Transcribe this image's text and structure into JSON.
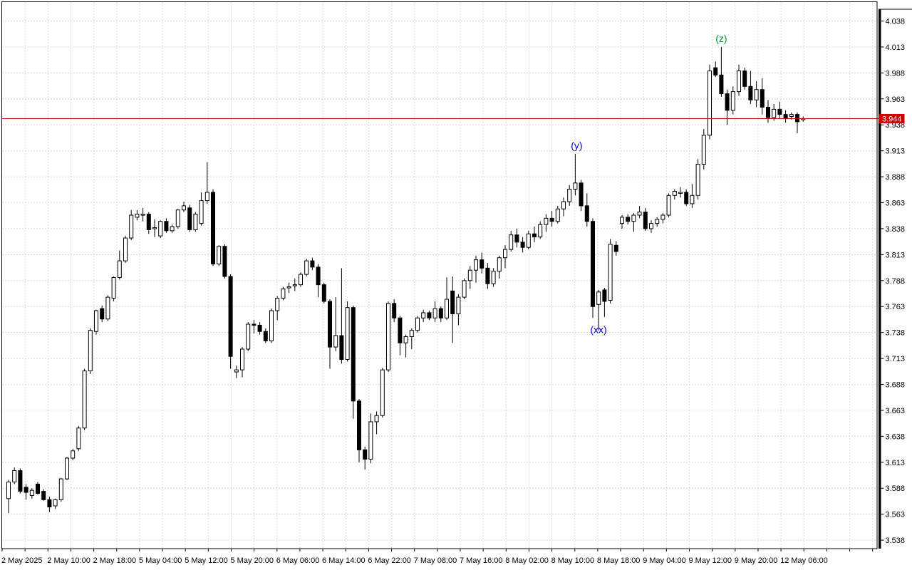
{
  "window": {
    "background": "#ffffff"
  },
  "colors": {
    "candle_up_fill": "#ffffff",
    "candle_down_fill": "#000000",
    "candle_stroke": "#000000",
    "grid": "#dcdcdc",
    "axis": "#000000",
    "price_line": "#cc0000",
    "price_tag_bg": "#cc0000",
    "price_tag_text": "#ffffff",
    "label_blue": "#0000dd",
    "label_green": "#009933",
    "scale_text": "#000000"
  },
  "price_scale": {
    "tick_labels": [
      "4.038",
      "4.013",
      "3.988",
      "3.963",
      "3.938",
      "3.913",
      "3.888",
      "3.863",
      "3.838",
      "3.813",
      "3.788",
      "3.763",
      "3.738",
      "3.713",
      "3.688",
      "3.663",
      "3.638",
      "3.613",
      "3.588",
      "3.563",
      "3.538"
    ]
  },
  "time_scale": {
    "tick_labels": [
      "2 May 2025",
      "2 May 10:00",
      "2 May 18:00",
      "5 May 04:00",
      "5 May 12:00",
      "5 May 20:00",
      "6 May 06:00",
      "6 May 14:00",
      "6 May 22:00",
      "7 May 08:00",
      "7 May 16:00",
      "8 May 02:00",
      "8 May 10:00",
      "8 May 18:00",
      "9 May 04:00",
      "9 May 12:00",
      "9 May 20:00",
      "12 May 06:00"
    ]
  },
  "chart_data": {
    "type": "candlestick",
    "title": "",
    "ylim": [
      3.538,
      4.038
    ],
    "y_tick_step": 0.025,
    "grid": true,
    "price_line": {
      "value": 3.944,
      "label": "3.944"
    },
    "annotations": [
      {
        "text": "(y)",
        "color": "#0000dd",
        "candle_index": 97,
        "placement": "above",
        "dx": 2
      },
      {
        "text": "(xx)",
        "color": "#0000dd",
        "candle_index": 100,
        "placement": "below",
        "dx": 8
      },
      {
        "text": "(z)",
        "color": "#009933",
        "candle_index": 122,
        "placement": "above",
        "dx": 0
      }
    ],
    "candles_format": [
      "open",
      "high",
      "low",
      "close"
    ],
    "candles": [
      [
        3.578,
        3.596,
        3.564,
        3.594
      ],
      [
        3.594,
        3.608,
        3.592,
        3.605
      ],
      [
        3.605,
        3.607,
        3.583,
        3.585
      ],
      [
        3.589,
        3.592,
        3.577,
        3.584
      ],
      [
        3.581,
        3.588,
        3.578,
        3.586
      ],
      [
        3.592,
        3.594,
        3.582,
        3.583
      ],
      [
        3.585,
        3.587,
        3.576,
        3.577
      ],
      [
        3.577,
        3.58,
        3.565,
        3.57
      ],
      [
        3.571,
        3.578,
        3.568,
        3.577
      ],
      [
        3.577,
        3.598,
        3.575,
        3.597
      ],
      [
        3.597,
        3.618,
        3.596,
        3.617
      ],
      [
        3.617,
        3.626,
        3.615,
        3.624
      ],
      [
        3.626,
        3.648,
        3.624,
        3.646
      ],
      [
        3.646,
        3.703,
        3.644,
        3.701
      ],
      [
        3.701,
        3.742,
        3.698,
        3.74
      ],
      [
        3.739,
        3.76,
        3.736,
        3.759
      ],
      [
        3.761,
        3.764,
        3.748,
        3.751
      ],
      [
        3.751,
        3.774,
        3.749,
        3.772
      ],
      [
        3.771,
        3.792,
        3.768,
        3.791
      ],
      [
        3.791,
        3.817,
        3.789,
        3.807
      ],
      [
        3.807,
        3.831,
        3.805,
        3.829
      ],
      [
        3.829,
        3.856,
        3.827,
        3.851
      ],
      [
        3.849,
        3.856,
        3.846,
        3.852
      ],
      [
        3.851,
        3.858,
        3.845,
        3.852
      ],
      [
        3.852,
        3.854,
        3.833,
        3.837
      ],
      [
        3.838,
        3.847,
        3.83,
        3.839
      ],
      [
        3.831,
        3.846,
        3.829,
        3.845
      ],
      [
        3.845,
        3.848,
        3.834,
        3.836
      ],
      [
        3.836,
        3.842,
        3.834,
        3.84
      ],
      [
        3.84,
        3.857,
        3.838,
        3.856
      ],
      [
        3.856,
        3.864,
        3.854,
        3.86
      ],
      [
        3.858,
        3.861,
        3.835,
        3.837
      ],
      [
        3.837,
        3.854,
        3.835,
        3.852
      ],
      [
        3.843,
        3.873,
        3.841,
        3.865
      ],
      [
        3.865,
        3.902,
        3.862,
        3.873
      ],
      [
        3.873,
        3.876,
        3.802,
        3.804
      ],
      [
        3.804,
        3.822,
        3.802,
        3.821
      ],
      [
        3.821,
        3.823,
        3.79,
        3.792
      ],
      [
        3.792,
        3.794,
        3.703,
        3.715
      ],
      [
        3.7,
        3.706,
        3.694,
        3.702
      ],
      [
        3.702,
        3.724,
        3.695,
        3.722
      ],
      [
        3.722,
        3.748,
        3.72,
        3.746
      ],
      [
        3.746,
        3.75,
        3.737,
        3.745
      ],
      [
        3.745,
        3.748,
        3.736,
        3.739
      ],
      [
        3.739,
        3.742,
        3.728,
        3.73
      ],
      [
        3.73,
        3.761,
        3.728,
        3.759
      ],
      [
        3.759,
        3.773,
        3.75,
        3.771
      ],
      [
        3.771,
        3.782,
        3.769,
        3.78
      ],
      [
        3.781,
        3.786,
        3.776,
        3.782
      ],
      [
        3.784,
        3.79,
        3.778,
        3.784
      ],
      [
        3.784,
        3.796,
        3.782,
        3.794
      ],
      [
        3.794,
        3.809,
        3.792,
        3.807
      ],
      [
        3.807,
        3.81,
        3.798,
        3.801
      ],
      [
        3.801,
        3.804,
        3.772,
        3.784
      ],
      [
        3.784,
        3.786,
        3.766,
        3.768
      ],
      [
        3.768,
        3.77,
        3.703,
        3.724
      ],
      [
        3.724,
        3.772,
        3.72,
        3.735
      ],
      [
        3.735,
        3.8,
        3.708,
        3.712
      ],
      [
        3.712,
        3.768,
        3.71,
        3.762
      ],
      [
        3.762,
        3.764,
        3.655,
        3.672
      ],
      [
        3.672,
        3.674,
        3.613,
        3.625
      ],
      [
        3.625,
        3.628,
        3.606,
        3.616
      ],
      [
        3.616,
        3.66,
        3.612,
        3.652
      ],
      [
        3.652,
        3.662,
        3.64,
        3.658
      ],
      [
        3.658,
        3.704,
        3.656,
        3.702
      ],
      [
        3.702,
        3.768,
        3.7,
        3.766
      ],
      [
        3.766,
        3.77,
        3.748,
        3.752
      ],
      [
        3.752,
        3.754,
        3.716,
        3.728
      ],
      [
        3.728,
        3.736,
        3.714,
        3.734
      ],
      [
        3.734,
        3.742,
        3.722,
        3.74
      ],
      [
        3.74,
        3.754,
        3.738,
        3.752
      ],
      [
        3.752,
        3.76,
        3.748,
        3.757
      ],
      [
        3.757,
        3.759,
        3.75,
        3.752
      ],
      [
        3.752,
        3.768,
        3.748,
        3.761
      ],
      [
        3.761,
        3.763,
        3.748,
        3.752
      ],
      [
        3.752,
        3.791,
        3.75,
        3.77
      ],
      [
        3.778,
        3.792,
        3.728,
        3.756
      ],
      [
        3.756,
        3.775,
        3.745,
        3.772
      ],
      [
        3.772,
        3.79,
        3.77,
        3.788
      ],
      [
        3.788,
        3.802,
        3.78,
        3.798
      ],
      [
        3.798,
        3.812,
        3.786,
        3.808
      ],
      [
        3.808,
        3.815,
        3.795,
        3.8
      ],
      [
        3.8,
        3.805,
        3.78,
        3.785
      ],
      [
        3.785,
        3.8,
        3.782,
        3.797
      ],
      [
        3.797,
        3.812,
        3.79,
        3.81
      ],
      [
        3.81,
        3.822,
        3.8,
        3.818
      ],
      [
        3.818,
        3.836,
        3.816,
        3.832
      ],
      [
        3.832,
        3.838,
        3.82,
        3.825
      ],
      [
        3.825,
        3.83,
        3.815,
        3.82
      ],
      [
        3.82,
        3.836,
        3.818,
        3.833
      ],
      [
        3.833,
        3.84,
        3.825,
        3.83
      ],
      [
        3.83,
        3.845,
        3.828,
        3.842
      ],
      [
        3.842,
        3.852,
        3.835,
        3.848
      ],
      [
        3.848,
        3.855,
        3.84,
        3.845
      ],
      [
        3.845,
        3.86,
        3.843,
        3.857
      ],
      [
        3.857,
        3.868,
        3.85,
        3.864
      ],
      [
        3.864,
        3.88,
        3.86,
        3.876
      ],
      [
        3.876,
        3.91,
        3.87,
        3.882
      ],
      [
        3.882,
        3.885,
        3.855,
        3.86
      ],
      [
        3.86,
        3.872,
        3.84,
        3.845
      ],
      [
        3.845,
        3.848,
        3.752,
        3.763
      ],
      [
        3.765,
        3.779,
        3.74,
        3.777
      ],
      [
        3.779,
        3.781,
        3.753,
        3.768
      ],
      [
        3.769,
        3.828,
        3.766,
        3.823
      ],
      [
        3.822,
        3.826,
        3.812,
        3.816
      ],
      [
        3.843,
        3.851,
        3.838,
        3.849
      ],
      [
        3.849,
        3.852,
        3.842,
        3.845
      ],
      [
        3.845,
        3.853,
        3.835,
        3.851
      ],
      [
        3.851,
        3.86,
        3.848,
        3.854
      ],
      [
        3.854,
        3.858,
        3.836,
        3.838
      ],
      [
        3.838,
        3.846,
        3.834,
        3.843
      ],
      [
        3.843,
        3.849,
        3.84,
        3.847
      ],
      [
        3.847,
        3.853,
        3.843,
        3.851
      ],
      [
        3.851,
        3.872,
        3.849,
        3.87
      ],
      [
        3.87,
        3.876,
        3.866,
        3.874
      ],
      [
        3.872,
        3.878,
        3.868,
        3.873
      ],
      [
        3.873,
        3.876,
        3.86,
        3.862
      ],
      [
        3.862,
        3.881,
        3.858,
        3.87
      ],
      [
        3.87,
        3.905,
        3.866,
        3.9
      ],
      [
        3.9,
        3.934,
        3.895,
        3.928
      ],
      [
        3.928,
        3.996,
        3.924,
        3.99
      ],
      [
        3.993,
        3.999,
        3.984,
        3.986
      ],
      [
        3.986,
        4.013,
        3.965,
        3.968
      ],
      [
        3.968,
        3.972,
        3.938,
        3.952
      ],
      [
        3.952,
        3.975,
        3.948,
        3.97
      ],
      [
        3.97,
        3.996,
        3.966,
        3.99
      ],
      [
        3.99,
        3.993,
        3.972,
        3.975
      ],
      [
        3.975,
        3.99,
        3.958,
        3.962
      ],
      [
        3.962,
        3.98,
        3.955,
        3.972
      ],
      [
        3.972,
        3.983,
        3.948,
        3.955
      ],
      [
        3.955,
        3.962,
        3.94,
        3.945
      ],
      [
        3.945,
        3.958,
        3.942,
        3.953
      ],
      [
        3.953,
        3.96,
        3.944,
        3.948
      ],
      [
        3.948,
        3.952,
        3.94,
        3.944
      ],
      [
        3.946,
        3.95,
        3.943,
        3.948
      ],
      [
        3.948,
        3.95,
        3.93,
        3.941
      ],
      [
        3.943,
        3.946,
        3.941,
        3.944
      ]
    ]
  }
}
